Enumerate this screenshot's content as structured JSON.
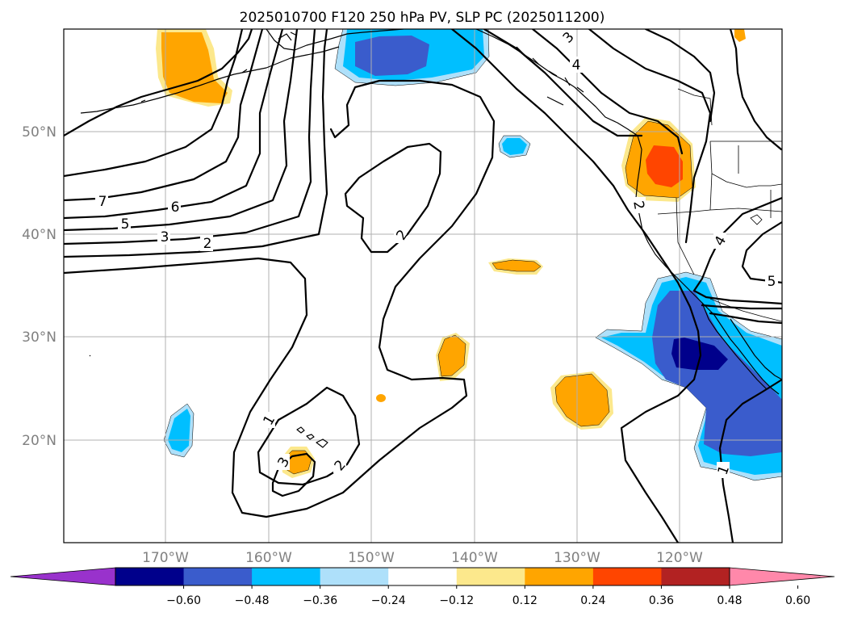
{
  "title": "2025010700 F120 250 hPa PV, SLP PC (2025011200)",
  "map": {
    "lat_labels": [
      "50°N",
      "40°N",
      "30°N",
      "20°N"
    ],
    "lon_labels": [
      "170°W",
      "160°W",
      "150°W",
      "140°W",
      "130°W",
      "120°W"
    ],
    "gridlines": true
  },
  "contour_labels": [
    "7",
    "6",
    "5",
    "3",
    "2",
    "2",
    "4",
    "2",
    "5",
    "1",
    "3",
    "2",
    "1",
    "1",
    "4",
    "3"
  ],
  "colorbar": {
    "ticks": [
      "−0.60",
      "−0.48",
      "−0.36",
      "−0.24",
      "−0.12",
      "0.12",
      "0.24",
      "0.36",
      "0.48",
      "0.60"
    ],
    "colors": [
      "#9932cc",
      "#00008b",
      "#3a5ccc",
      "#00bfff",
      "#aee0fa",
      "#ffffff",
      "#fce88c",
      "#ffa500",
      "#ff4500",
      "#b22222",
      "#ff88aa"
    ],
    "extend": "both"
  }
}
